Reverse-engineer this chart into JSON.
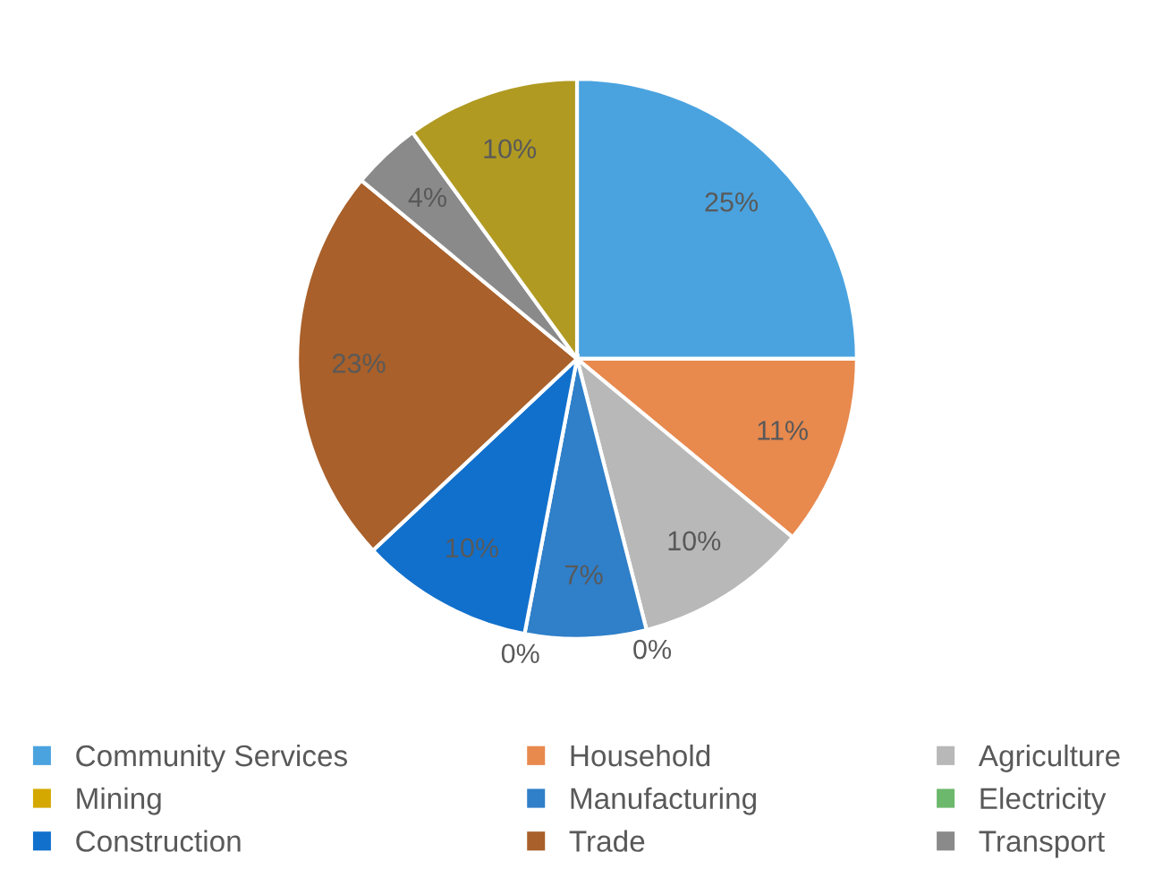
{
  "chart_data": {
    "type": "pie",
    "categories": [
      "Community Services",
      "Household",
      "Agriculture",
      "Mining",
      "Manufacturing",
      "Electricity",
      "Construction",
      "Trade",
      "Transport",
      null
    ],
    "values": [
      25,
      11,
      10,
      0,
      7,
      0,
      10,
      23,
      4,
      10
    ],
    "value_labels": [
      "25%",
      "11%",
      "10%",
      "0%",
      "7%",
      "0%",
      "10%",
      "23%",
      "4%",
      "10%"
    ],
    "colors": [
      "#4aa3df",
      "#e8894e",
      "#b8b8b8",
      "#d4a800",
      "#2f7fc9",
      "#6cb86c",
      "#1170cc",
      "#a9602a",
      "#8a8a8a",
      "#b09a22"
    ],
    "legend": "bottom"
  }
}
